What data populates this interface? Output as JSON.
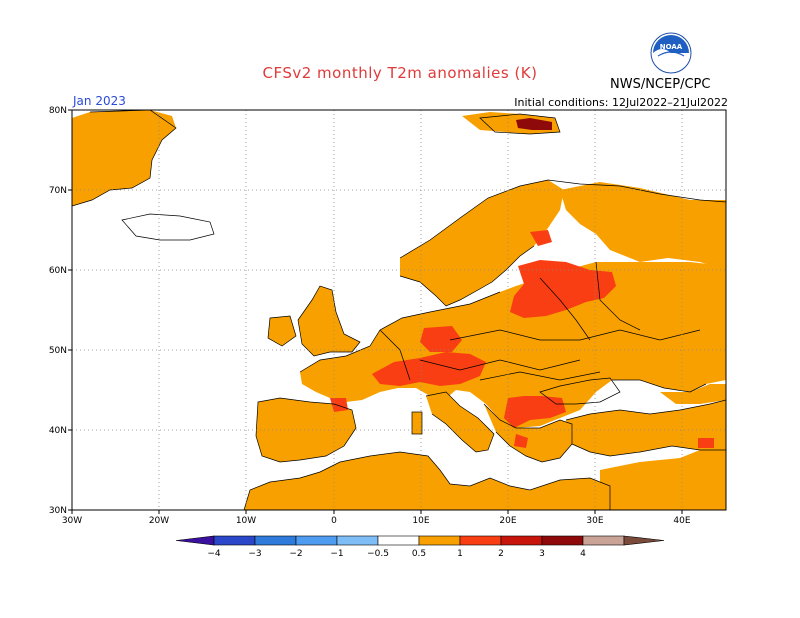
{
  "header": {
    "title": "CFSv2 monthly T2m anomalies (K)",
    "agency": "NWS/NCEP/CPC",
    "month": "Jan 2023",
    "initial_conditions": "Initial conditions: 12Jul2022–21Jul2022"
  },
  "map": {
    "lon_range": [
      -30,
      45
    ],
    "lat_range": [
      30,
      80
    ],
    "lon_ticks": [
      "30W",
      "20W",
      "10W",
      "0",
      "10E",
      "20E",
      "30E",
      "40E"
    ],
    "lat_ticks": [
      "30N",
      "40N",
      "50N",
      "60N",
      "70N",
      "80N"
    ],
    "grid": "dotted"
  },
  "colorbar": {
    "labels": [
      "−4",
      "−3",
      "−2",
      "−1",
      "−0.5",
      "0.5",
      "1",
      "2",
      "3",
      "4"
    ],
    "colors": [
      "#3b0fa0",
      "#2a46c9",
      "#2e7bdb",
      "#4d9cf0",
      "#7fbdf7",
      "#ffffff",
      "#f7a000",
      "#f83e12",
      "#c8150b",
      "#8e0a0a",
      "#c9a496",
      "#7a4a3a"
    ]
  },
  "icons": {
    "logo": "noaa-logo-icon"
  }
}
